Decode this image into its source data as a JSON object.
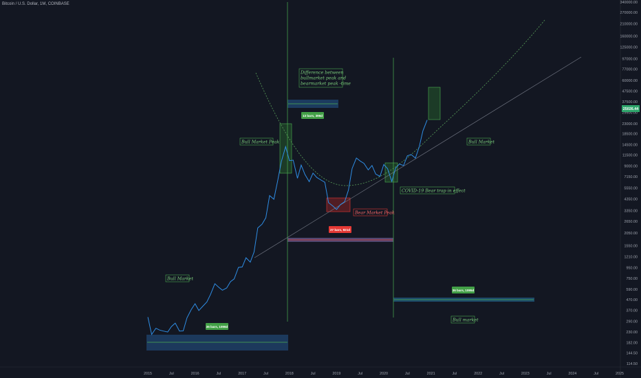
{
  "header": {
    "symbol_title": "Bitcoin / U.S. Dollar, 1M, COINBASE"
  },
  "colors": {
    "background": "#131722",
    "price_line": "#2f8ee6",
    "green": "#4caf50",
    "red": "#e53935",
    "trend_line": "#7a7f8c",
    "dotted_curve": "#5aa05a",
    "box_blue": "#1e4d8a"
  },
  "y_axis": {
    "scale": "log",
    "ticks": [
      "340000.00",
      "270000.00",
      "210000.00",
      "160000.00",
      "125000.00",
      "97000.00",
      "77000.00",
      "60000.00",
      "47500.00",
      "37500.00",
      "29500.00",
      "23000.00",
      "18500.00",
      "14500.00",
      "11500.00",
      "9000.00",
      "7150.00",
      "5550.00",
      "4350.00",
      "3350.00",
      "2650.00",
      "2050.00",
      "1550.00",
      "1210.00",
      "950.00",
      "750.00",
      "590.00",
      "470.00",
      "370.00",
      "290.00",
      "230.00",
      "182.00",
      "144.50",
      "114.50"
    ]
  },
  "x_axis": {
    "ticks": [
      "2015",
      "Jul",
      "2016",
      "Jul",
      "2017",
      "Jul",
      "2018",
      "Jul",
      "2019",
      "Jul",
      "2020",
      "Jul",
      "2021",
      "Jul",
      "2022",
      "Jul",
      "2023",
      "Jul",
      "2024",
      "Jul",
      "2025"
    ]
  },
  "last_price": "25026.44",
  "annotations": {
    "difference_note": [
      "Difference between",
      "bullmarket peak and",
      "bearmarket peak -time"
    ],
    "bull_market_peak": "Bull Market Peak",
    "bull_market_left": "Bull Market",
    "bull_market_right": "Bull Market",
    "bull_market_bottom": "Bull market",
    "bear_market_peak": "Bear Market Peak",
    "covid": "COVID-19 Bear trap in effect"
  },
  "ranges": {
    "r1": "36 bars, 1096d",
    "r2": "13 bars, 396d",
    "r3": "27 bars, 821d",
    "r4": "36 bars, 1095d"
  },
  "chart_data": {
    "type": "line",
    "title": "Bitcoin / U.S. Dollar, 1M, COINBASE",
    "xlabel": "",
    "ylabel": "",
    "ylim": [
      114.5,
      340000
    ],
    "yscale": "log",
    "series": [
      {
        "x": [
          2015.0,
          2015.08,
          2015.17,
          2015.25,
          2015.33,
          2015.42,
          2015.5,
          2015.58,
          2015.67,
          2015.75,
          2015.83,
          2015.92,
          2016.0,
          2016.08,
          2016.17,
          2016.25,
          2016.33,
          2016.42,
          2016.5,
          2016.58,
          2016.67,
          2016.75,
          2016.83,
          2016.92,
          2017.0,
          2017.08,
          2017.17,
          2017.25,
          2017.33,
          2017.42,
          2017.5,
          2017.58,
          2017.67,
          2017.75,
          2017.83,
          2017.92,
          2018.0,
          2018.08,
          2018.17,
          2018.25,
          2018.33,
          2018.42,
          2018.5,
          2018.58,
          2018.67,
          2018.75,
          2018.83,
          2018.92,
          2019.0,
          2019.08,
          2019.17,
          2019.25,
          2019.33,
          2019.42,
          2019.5,
          2019.58,
          2019.67,
          2019.75,
          2019.83,
          2019.92,
          2020.0,
          2020.08,
          2020.17,
          2020.25,
          2020.33,
          2020.42,
          2020.5,
          2020.58,
          2020.67,
          2020.75,
          2020.83,
          2020.92
        ],
        "y": [
          320,
          218,
          250,
          240,
          235,
          230,
          260,
          280,
          235,
          236,
          315,
          378,
          430,
          370,
          410,
          448,
          530,
          670,
          620,
          580,
          610,
          700,
          745,
          960,
          970,
          1190,
          1080,
          1350,
          2300,
          2500,
          2880,
          4700,
          4340,
          6450,
          10000,
          13880,
          10200,
          10300,
          6900,
          9240,
          7500,
          6400,
          7730,
          7030,
          6630,
          6320,
          4020,
          3740,
          3460,
          3850,
          4100,
          5300,
          8570,
          10800,
          10100,
          9600,
          8300,
          9150,
          7570,
          7200,
          9350,
          8530,
          6430,
          8620,
          9450,
          9140,
          11350,
          11650,
          10780,
          13800,
          19700,
          25026
        ]
      }
    ]
  }
}
